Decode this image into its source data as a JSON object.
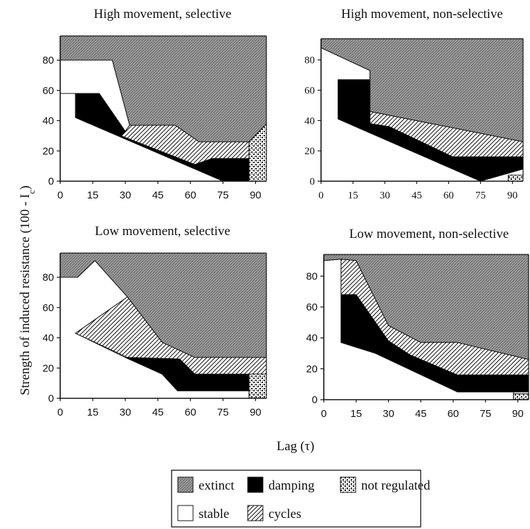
{
  "chart_data": {
    "type": "area",
    "ylabel": "Strength of  induced resistance (100 - I",
    "ylabel_sub": "c",
    "ylabel_close": ")",
    "xlabel": "Lag (τ)",
    "legend": {
      "placement": "bottom-center",
      "entries": [
        {
          "key": "extinct",
          "label": "extinct",
          "fill": "hatch-dense"
        },
        {
          "key": "damping",
          "label": "damping",
          "fill": "solid-black"
        },
        {
          "key": "not_regulated",
          "label": "not regulated",
          "fill": "dots"
        },
        {
          "key": "stable",
          "label": "stable",
          "fill": "white"
        },
        {
          "key": "cycles",
          "label": "cycles",
          "fill": "diagonal-hatch"
        }
      ]
    },
    "panels": [
      {
        "title": "High movement, selective",
        "xticks": [
          "0",
          "15",
          "30",
          "45",
          "60",
          "75",
          "90"
        ],
        "yticks": [
          "0",
          "20",
          "40",
          "60",
          "80"
        ],
        "xlim": [
          0,
          95
        ],
        "ylim": [
          0,
          96
        ],
        "regions": {
          "extinct": [
            [
              0,
              96
            ],
            [
              95,
              96
            ],
            [
              95,
              38
            ],
            [
              87,
              26
            ],
            [
              64,
              26
            ],
            [
              53,
              37
            ],
            [
              32,
              37
            ],
            [
              24,
              80
            ],
            [
              0,
              80
            ]
          ],
          "stable": [
            [
              0,
              80
            ],
            [
              24,
              80
            ],
            [
              32,
              37
            ],
            [
              30,
              33
            ],
            [
              7,
              43
            ],
            [
              7,
              58
            ],
            [
              0,
              58
            ]
          ],
          "cycles": [
            [
              32,
              37
            ],
            [
              53,
              37
            ],
            [
              64,
              26
            ],
            [
              87,
              26
            ],
            [
              87,
              15
            ],
            [
              70,
              15
            ],
            [
              62,
              11
            ],
            [
              28,
              30
            ],
            [
              30,
              33
            ]
          ],
          "damping": [
            [
              7,
              58
            ],
            [
              18,
              58
            ],
            [
              30,
              33
            ],
            [
              28,
              30
            ],
            [
              62,
              11
            ],
            [
              70,
              15
            ],
            [
              87,
              15
            ],
            [
              87,
              0
            ],
            [
              75,
              0
            ],
            [
              7,
              42
            ]
          ],
          "not_regulated": [
            [
              87,
              0
            ],
            [
              95,
              0
            ],
            [
              95,
              38
            ],
            [
              87,
              26
            ]
          ]
        }
      },
      {
        "title": "High movement, non-selective",
        "xticks": [
          "0",
          "15",
          "30",
          "45",
          "60",
          "75",
          "90"
        ],
        "yticks": [
          "0",
          "20",
          "40",
          "60",
          "80"
        ],
        "xlim": [
          0,
          95
        ],
        "ylim": [
          0,
          94
        ],
        "regions": {
          "extinct": [
            [
              0,
              88
            ],
            [
              0,
              94
            ],
            [
              95,
              94
            ],
            [
              95,
              26
            ],
            [
              23,
              46
            ],
            [
              23,
              73
            ]
          ],
          "stable": [
            [
              0,
              88
            ],
            [
              23,
              73
            ],
            [
              23,
              67
            ],
            [
              8,
              67
            ],
            [
              8,
              41
            ],
            [
              75,
              0
            ],
            [
              0,
              0
            ]
          ],
          "cycles": [
            [
              23,
              46
            ],
            [
              95,
              26
            ],
            [
              95,
              16
            ],
            [
              62,
              16
            ],
            [
              32,
              36
            ],
            [
              23,
              38
            ]
          ],
          "damping": [
            [
              8,
              67
            ],
            [
              23,
              67
            ],
            [
              23,
              38
            ],
            [
              32,
              36
            ],
            [
              62,
              16
            ],
            [
              95,
              16
            ],
            [
              95,
              8
            ],
            [
              75,
              0
            ],
            [
              8,
              41
            ]
          ],
          "not_regulated": [
            [
              88,
              0
            ],
            [
              95,
              0
            ],
            [
              95,
              4
            ],
            [
              88,
              4
            ]
          ]
        }
      },
      {
        "title": "Low movement, selective",
        "xticks": [
          "0",
          "15",
          "30",
          "45",
          "60",
          "75",
          "90"
        ],
        "yticks": [
          "0",
          "20",
          "40",
          "60",
          "80"
        ],
        "xlim": [
          0,
          95
        ],
        "ylim": [
          0,
          96
        ],
        "regions": {
          "extinct": [
            [
              0,
              96
            ],
            [
              95,
              96
            ],
            [
              95,
              27
            ],
            [
              62,
              27
            ],
            [
              47,
              37
            ],
            [
              31,
              67
            ],
            [
              16,
              91
            ],
            [
              8,
              80
            ],
            [
              0,
              80
            ]
          ],
          "stable": [
            [
              0,
              80
            ],
            [
              8,
              80
            ],
            [
              16,
              91
            ],
            [
              31,
              67
            ],
            [
              7,
              43
            ],
            [
              30,
              27
            ],
            [
              47,
              16
            ],
            [
              54,
              5
            ],
            [
              87,
              5
            ],
            [
              87,
              0
            ],
            [
              0,
              0
            ]
          ],
          "cycles": [
            [
              7,
              43
            ],
            [
              31,
              67
            ],
            [
              47,
              37
            ],
            [
              62,
              27
            ],
            [
              95,
              27
            ],
            [
              95,
              16
            ],
            [
              62,
              16
            ],
            [
              55,
              26
            ],
            [
              31,
              27
            ]
          ],
          "damping": [
            [
              31,
              27
            ],
            [
              55,
              26
            ],
            [
              62,
              16
            ],
            [
              87,
              16
            ],
            [
              87,
              5
            ],
            [
              54,
              5
            ],
            [
              47,
              16
            ],
            [
              30,
              27
            ]
          ],
          "not_regulated": [
            [
              87,
              0
            ],
            [
              95,
              0
            ],
            [
              95,
              16
            ],
            [
              87,
              16
            ]
          ]
        }
      },
      {
        "title": "Low movement, non-selective",
        "xticks": [
          "0",
          "15",
          "30",
          "45",
          "60",
          "75",
          "90"
        ],
        "yticks": [
          "0",
          "20",
          "40",
          "60",
          "80"
        ],
        "xlim": [
          0,
          95
        ],
        "ylim": [
          0,
          94
        ],
        "regions": {
          "extinct": [
            [
              0,
              90
            ],
            [
              0,
              94
            ],
            [
              95,
              94
            ],
            [
              95,
              26
            ],
            [
              62,
              37
            ],
            [
              45,
              37
            ],
            [
              30,
              48
            ],
            [
              15,
              90
            ],
            [
              8,
              91
            ]
          ],
          "stable": [
            [
              0,
              90
            ],
            [
              8,
              91
            ],
            [
              8,
              37
            ],
            [
              24,
              30
            ],
            [
              62,
              5
            ],
            [
              88,
              5
            ],
            [
              88,
              0
            ],
            [
              0,
              0
            ]
          ],
          "cycles": [
            [
              8,
              91
            ],
            [
              15,
              90
            ],
            [
              30,
              48
            ],
            [
              45,
              37
            ],
            [
              62,
              37
            ],
            [
              95,
              26
            ],
            [
              95,
              16
            ],
            [
              62,
              16
            ],
            [
              40,
              29
            ],
            [
              30,
              38
            ],
            [
              15,
              68
            ],
            [
              8,
              68
            ]
          ],
          "damping": [
            [
              8,
              68
            ],
            [
              15,
              68
            ],
            [
              30,
              38
            ],
            [
              40,
              29
            ],
            [
              62,
              16
            ],
            [
              95,
              16
            ],
            [
              95,
              5
            ],
            [
              62,
              5
            ],
            [
              24,
              30
            ],
            [
              8,
              37
            ]
          ],
          "not_regulated": [
            [
              88,
              0
            ],
            [
              95,
              0
            ],
            [
              95,
              4
            ],
            [
              88,
              4
            ]
          ]
        }
      }
    ]
  }
}
